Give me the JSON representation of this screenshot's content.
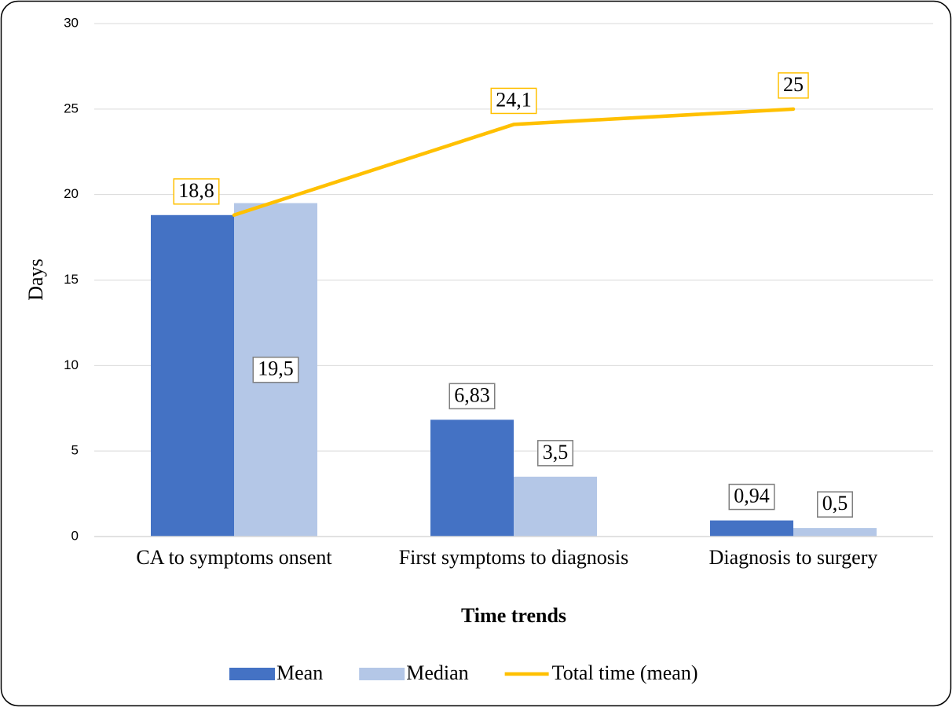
{
  "chart_data": {
    "type": "bar",
    "categories": [
      "CA to symptoms onsent",
      "First symptoms to diagnosis",
      "Diagnosis to surgery"
    ],
    "series": [
      {
        "name": "Mean",
        "type": "bar",
        "color": "#4472c4",
        "values": [
          18.8,
          6.83,
          0.94
        ],
        "value_labels": [
          null,
          "6,83",
          "0,94"
        ]
      },
      {
        "name": "Median",
        "type": "bar",
        "color": "#b4c7e7",
        "values": [
          19.5,
          3.5,
          0.5
        ],
        "value_labels": [
          "19,5",
          "3,5",
          "0,5"
        ]
      },
      {
        "name": "Total time (mean)",
        "type": "line",
        "color": "#ffc000",
        "values": [
          18.8,
          24.1,
          25
        ],
        "value_labels": [
          "18,8",
          "24,1",
          "25"
        ]
      }
    ],
    "y_label": "Days",
    "x_label": "Time trends",
    "ylim": [
      0,
      30
    ],
    "yticks": [
      0,
      5,
      10,
      15,
      20,
      25,
      30
    ],
    "grid": true,
    "legend": "bottom"
  }
}
